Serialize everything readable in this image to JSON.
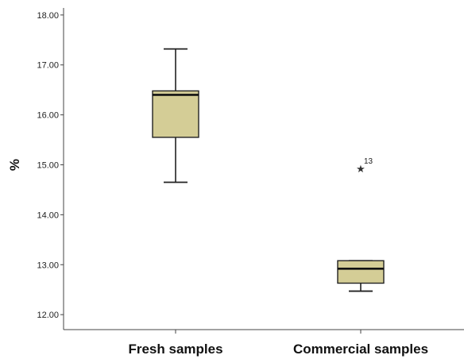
{
  "chart_data": {
    "type": "boxplot",
    "title": "",
    "xlabel": "",
    "ylabel": "%",
    "ylim": [
      11.7,
      18.3
    ],
    "yticks": [
      12.0,
      13.0,
      14.0,
      15.0,
      16.0,
      17.0,
      18.0
    ],
    "ytick_labels": [
      "12.00",
      "13.00",
      "14.00",
      "15.00",
      "16.00",
      "17.00",
      "18.00"
    ],
    "grid": false,
    "categories": [
      "Fresh samples",
      "Commercial samples"
    ],
    "boxes": [
      {
        "min": 14.65,
        "q1": 15.55,
        "median": 16.4,
        "q3": 16.48,
        "max": 17.32,
        "outliers": []
      },
      {
        "min": 12.47,
        "q1": 12.63,
        "median": 12.92,
        "q3": 13.08,
        "max": 13.08,
        "outliers": [
          {
            "value": 14.93,
            "label": "13"
          }
        ]
      }
    ],
    "colors": {
      "box_fill": "#d4cd96",
      "box_stroke": "#222222",
      "axis": "#444444"
    }
  }
}
